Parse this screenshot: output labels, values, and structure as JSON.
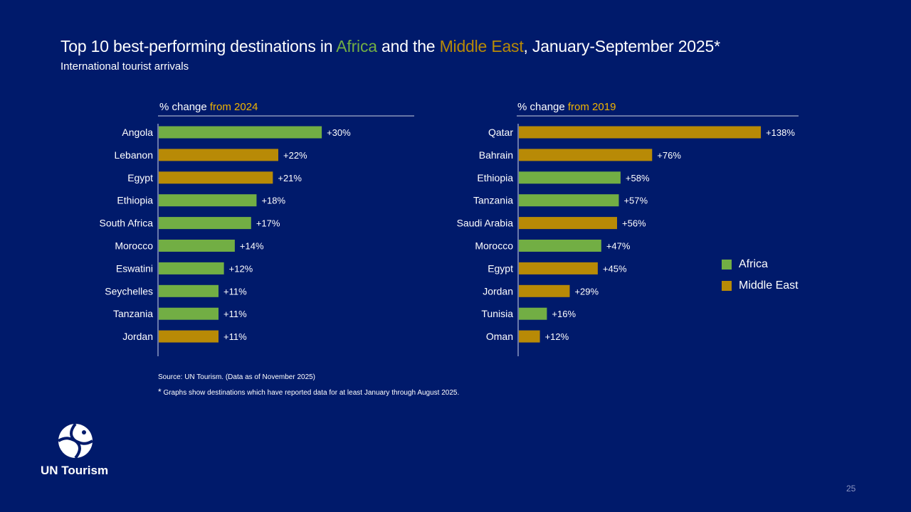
{
  "title": {
    "prefix": "Top 10 best-performing destinations in ",
    "africa": "Africa",
    "middle": " and the ",
    "me": "Middle East",
    "suffix": ", January-September 2025*"
  },
  "subtitle": "International tourist arrivals",
  "colors": {
    "africa": "#72ae44",
    "middle_east": "#b88a06",
    "highlight": "#f0b400",
    "background": "#001a6b"
  },
  "legend": {
    "africa": "Africa",
    "middle_east": "Middle East"
  },
  "notes": {
    "source": "Source: UN Tourism. (Data as of November 2025)",
    "star": "*",
    "footnote": " Graphs show destinations which have reported data for at least January through August 2025."
  },
  "logo": {
    "name": "UN Tourism",
    "icon": "un-tourism-logo-icon"
  },
  "page_number": "25",
  "chart_data": [
    {
      "type": "bar",
      "orientation": "horizontal",
      "title_prefix": "% change ",
      "title_highlight": "from 2024",
      "categories": [
        "Angola",
        "Lebanon",
        "Egypt",
        "Ethiopia",
        "South Africa",
        "Morocco",
        "Eswatini",
        "Seychelles",
        "Tanzania",
        "Jordan"
      ],
      "values": [
        30,
        22,
        21,
        18,
        17,
        14,
        12,
        11,
        11,
        11
      ],
      "labels": [
        "+30%",
        "+22%",
        "+21%",
        "+18%",
        "+17%",
        "+14%",
        "+12%",
        "+11%",
        "+11%",
        "+11%"
      ],
      "regions": [
        "africa",
        "middle_east",
        "middle_east",
        "africa",
        "africa",
        "africa",
        "africa",
        "africa",
        "africa",
        "middle_east"
      ],
      "xlim": [
        0,
        55
      ]
    },
    {
      "type": "bar",
      "orientation": "horizontal",
      "title_prefix": "% change ",
      "title_highlight": "from 2019",
      "categories": [
        "Qatar",
        "Bahrain",
        "Ethiopia",
        "Tanzania",
        "Saudi Arabia",
        "Morocco",
        "Egypt",
        "Jordan",
        "Tunisia",
        "Oman"
      ],
      "values": [
        138,
        76,
        58,
        57,
        56,
        47,
        45,
        29,
        16,
        12
      ],
      "labels": [
        "+138%",
        "+76%",
        "+58%",
        "+57%",
        "+56%",
        "+47%",
        "+45%",
        "+29%",
        "+16%",
        "+12%"
      ],
      "regions": [
        "middle_east",
        "middle_east",
        "africa",
        "africa",
        "middle_east",
        "africa",
        "middle_east",
        "middle_east",
        "africa",
        "middle_east"
      ],
      "xlim": [
        0,
        140
      ]
    }
  ]
}
